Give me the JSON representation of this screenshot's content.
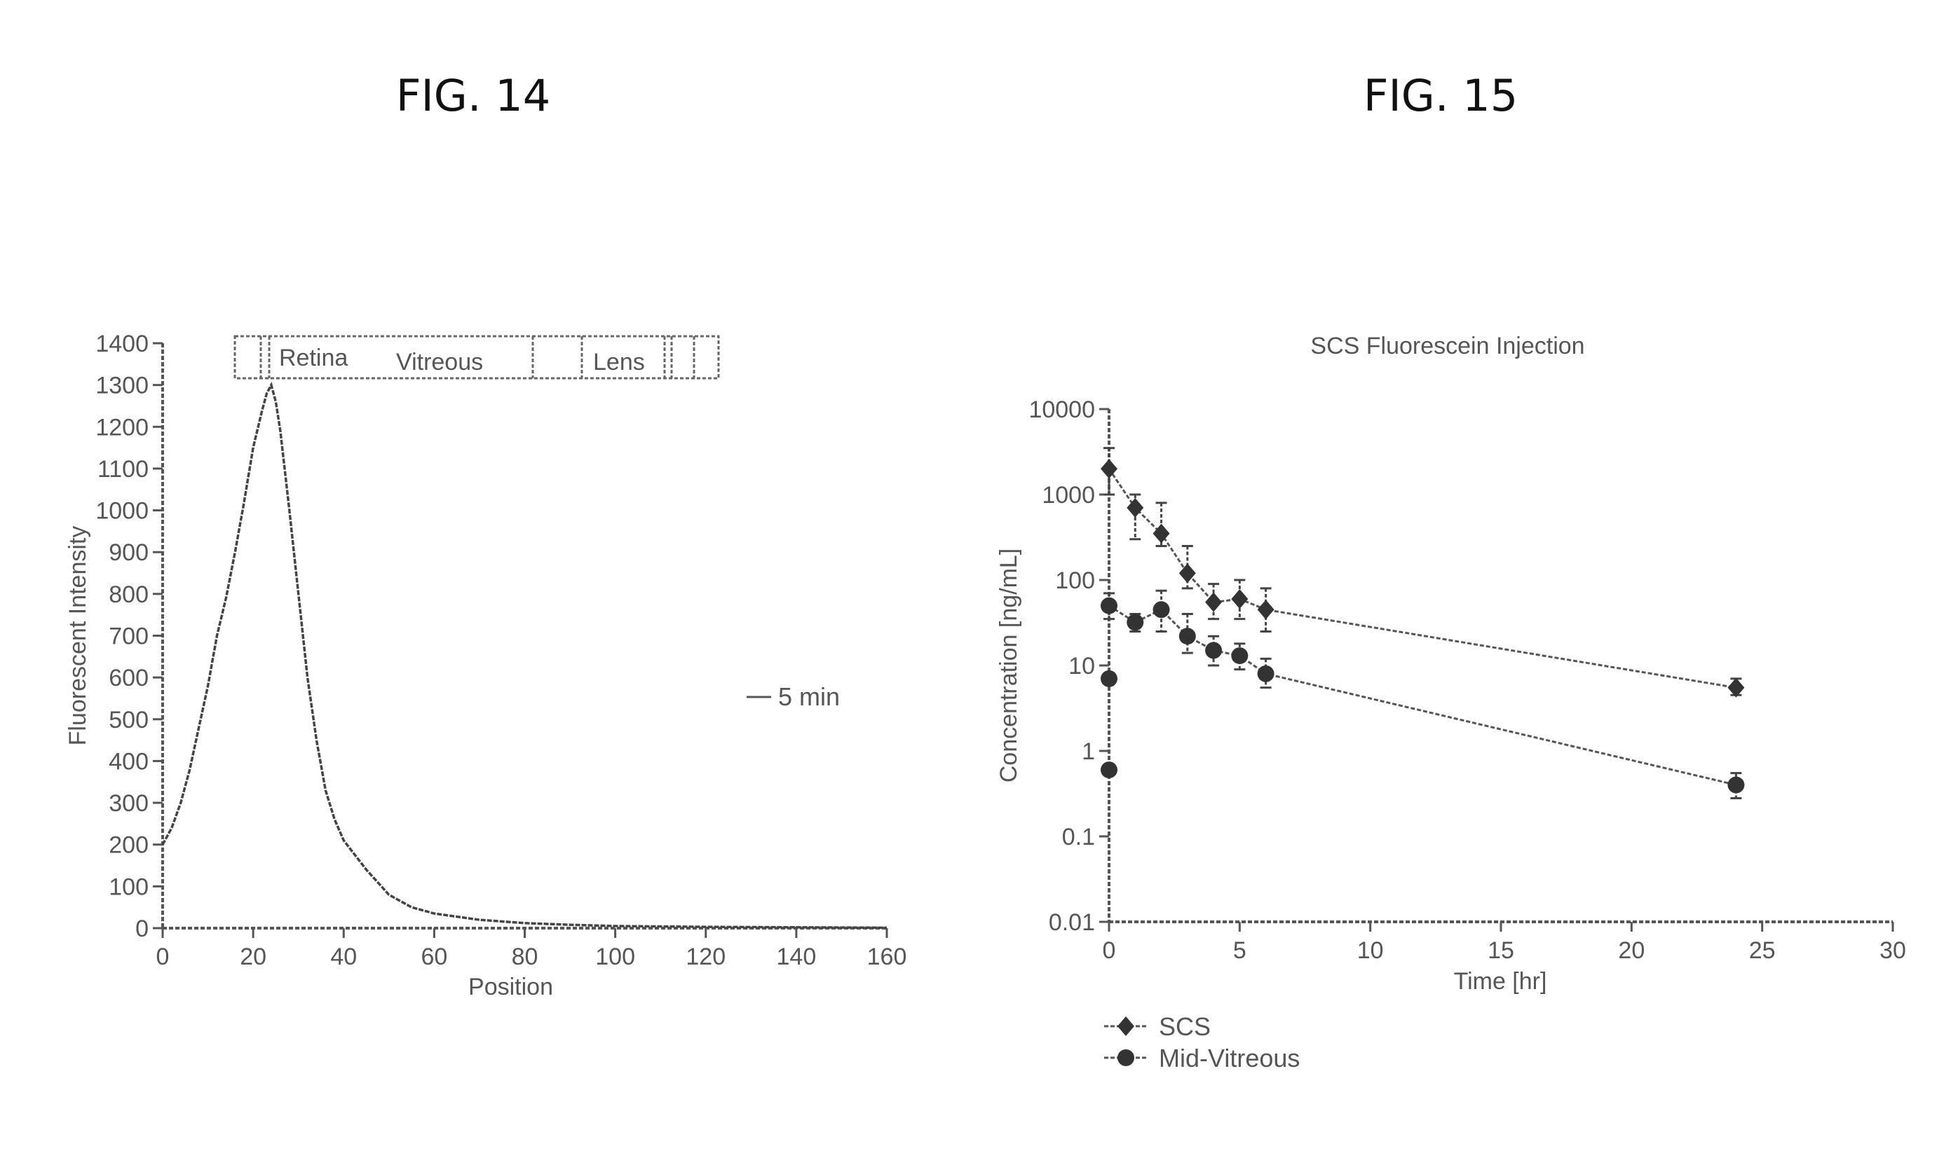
{
  "figures": {
    "fig14_title": "FIG. 14",
    "fig15_title": "FIG. 15"
  },
  "chart_data": [
    {
      "type": "line",
      "title": "",
      "xlabel": "Position",
      "ylabel": "Fluorescent Intensity",
      "xlim": [
        0,
        160
      ],
      "ylim": [
        0,
        1400
      ],
      "xticks": [
        0,
        20,
        40,
        60,
        80,
        100,
        120,
        140,
        160
      ],
      "yticks": [
        0,
        100,
        200,
        300,
        400,
        500,
        600,
        700,
        800,
        900,
        1000,
        1100,
        1200,
        1300,
        1400
      ],
      "region_labels": [
        "Retina",
        "Vitreous",
        "Lens"
      ],
      "series": [
        {
          "name": "5 min",
          "x": [
            0,
            2,
            4,
            6,
            8,
            10,
            12,
            14,
            16,
            18,
            20,
            22,
            23,
            24,
            25,
            26,
            28,
            30,
            32,
            34,
            36,
            38,
            40,
            45,
            50,
            55,
            60,
            70,
            80,
            90,
            100,
            120,
            140,
            160
          ],
          "y": [
            200,
            240,
            300,
            380,
            480,
            580,
            700,
            790,
            900,
            1020,
            1150,
            1240,
            1280,
            1300,
            1260,
            1190,
            1000,
            800,
            600,
            450,
            330,
            260,
            210,
            140,
            80,
            50,
            35,
            20,
            12,
            8,
            5,
            3,
            2,
            1
          ]
        }
      ]
    },
    {
      "type": "line",
      "title": "SCS Fluorescein Injection",
      "xlabel": "Time [hr]",
      "ylabel": "Concentration [ng/mL]",
      "yscale": "log",
      "xlim": [
        0,
        30
      ],
      "ylim": [
        0.01,
        10000
      ],
      "xticks": [
        0,
        5,
        10,
        15,
        20,
        25,
        30
      ],
      "yticks": [
        0.01,
        0.1,
        1,
        10,
        100,
        1000,
        10000
      ],
      "ytick_labels": [
        "0.01",
        "0.1",
        "1",
        "10",
        "100",
        "1000",
        "10000"
      ],
      "legend_position": "bottom-left",
      "series": [
        {
          "name": "SCS",
          "marker": "diamond",
          "x": [
            0,
            1,
            2,
            3,
            4,
            5,
            6,
            24
          ],
          "y": [
            2000,
            700,
            350,
            120,
            55,
            60,
            45,
            5.5
          ],
          "err_low": [
            1000,
            300,
            250,
            80,
            35,
            35,
            25,
            4.5
          ],
          "err_high": [
            3500,
            1000,
            800,
            250,
            90,
            100,
            80,
            7
          ]
        },
        {
          "name": "Mid-Vitreous",
          "marker": "circle",
          "x": [
            0,
            1,
            2,
            3,
            4,
            5,
            6,
            24
          ],
          "y": [
            50,
            32,
            45,
            22,
            15,
            13,
            8,
            0.4
          ],
          "err_low": [
            35,
            25,
            25,
            14,
            10,
            9,
            5.5,
            0.28
          ],
          "err_high": [
            70,
            40,
            75,
            40,
            22,
            18,
            12,
            0.55
          ],
          "extra_points": {
            "x": [
              0,
              0
            ],
            "y": [
              7,
              0.6
            ]
          }
        }
      ]
    }
  ]
}
